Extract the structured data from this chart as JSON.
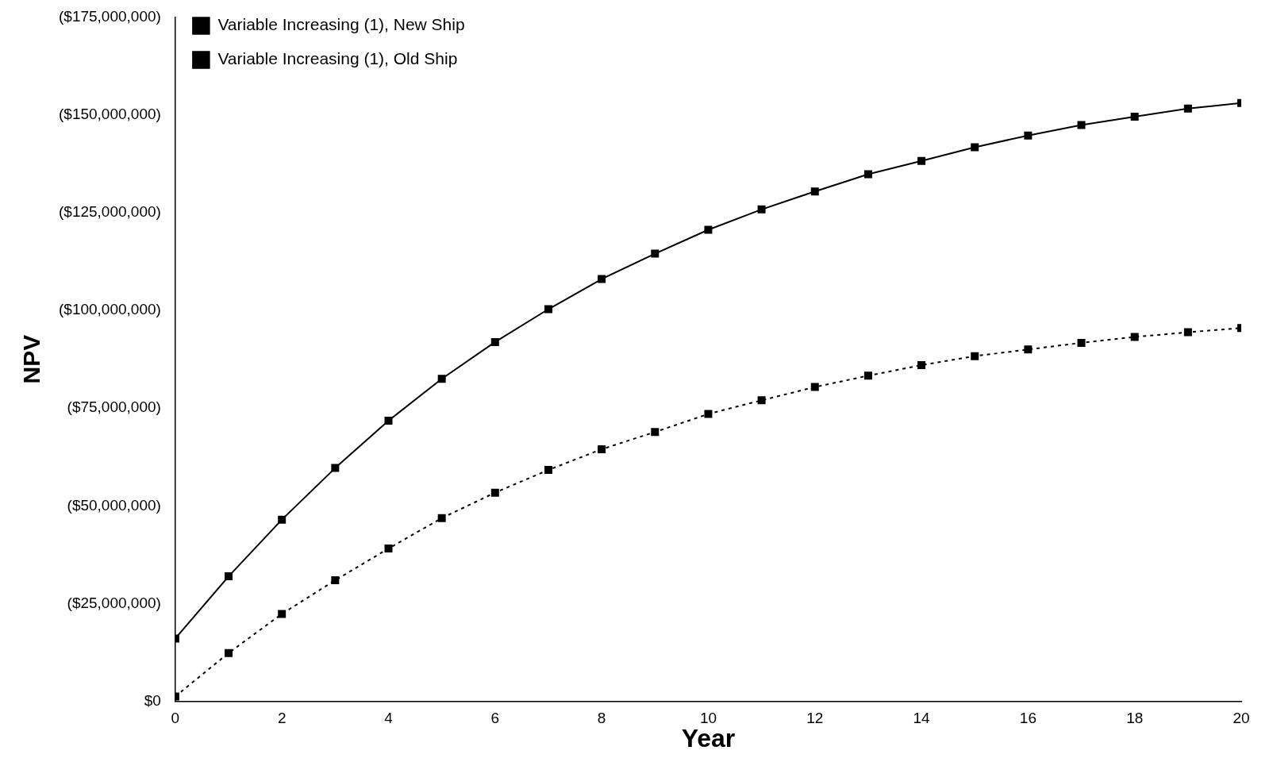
{
  "chart_data": {
    "type": "line",
    "xlabel": "Year",
    "ylabel": "NPV",
    "xlim": [
      0,
      20
    ],
    "xticks": [
      0,
      2,
      4,
      6,
      8,
      10,
      12,
      14,
      16,
      18,
      20
    ],
    "ylim": [
      0,
      -175000000
    ],
    "yticks": [
      {
        "value": 0,
        "label": "$0"
      },
      {
        "value": -25000000,
        "label": "($25,000,000)"
      },
      {
        "value": -50000000,
        "label": "($50,000,000)"
      },
      {
        "value": -75000000,
        "label": "($75,000,000)"
      },
      {
        "value": -100000000,
        "label": "($100,000,000)"
      },
      {
        "value": -125000000,
        "label": "($125,000,000)"
      },
      {
        "value": -150000000,
        "label": "($150,000,000)"
      },
      {
        "value": -175000000,
        "label": "($175,000,000)"
      }
    ],
    "x": [
      0,
      1,
      2,
      3,
      4,
      5,
      6,
      7,
      8,
      9,
      10,
      11,
      12,
      13,
      14,
      15,
      16,
      17,
      18,
      19,
      20
    ],
    "grid": false,
    "legend": "top left",
    "marker": "square",
    "series": [
      {
        "name": "Variable Increasing (1), New Ship",
        "color": "#000000",
        "line_style": "solid",
        "values": [
          -16100000,
          -32000000,
          -46500000,
          -59700000,
          -71800000,
          -82500000,
          -91900000,
          -100300000,
          -108000000,
          -114500000,
          -120600000,
          -125800000,
          -130400000,
          -134800000,
          -138200000,
          -141700000,
          -144700000,
          -147400000,
          -149500000,
          -151600000,
          -153000000
        ]
      },
      {
        "name": "Variable Increasing (1), Old Ship",
        "color": "#000000",
        "line_style": "dotted",
        "values": [
          -1300000,
          -12400000,
          -22400000,
          -31000000,
          -39100000,
          -46900000,
          -53400000,
          -59200000,
          -64500000,
          -68900000,
          -73500000,
          -77000000,
          -80400000,
          -83300000,
          -86000000,
          -88300000,
          -90000000,
          -91700000,
          -93200000,
          -94400000,
          -95500000
        ]
      }
    ]
  }
}
